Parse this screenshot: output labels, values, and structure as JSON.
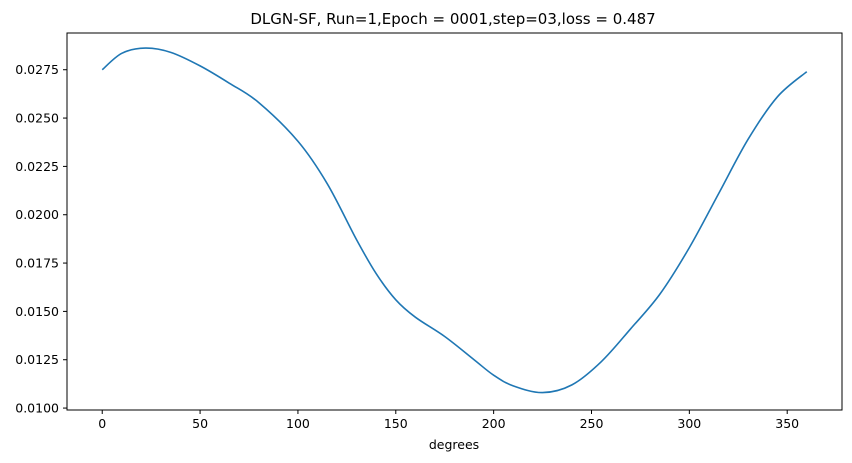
{
  "chart_data": {
    "type": "line",
    "title": "DLGN-SF, Run=1,Epoch = 0001,step=03,loss = 0.487",
    "xlabel": "degrees",
    "ylabel": "",
    "xlim": [
      -18,
      378
    ],
    "ylim": [
      0.0099,
      0.0294
    ],
    "xticks": [
      0,
      50,
      100,
      150,
      200,
      250,
      300,
      350
    ],
    "yticks": [
      0.01,
      0.0125,
      0.015,
      0.0175,
      0.02,
      0.0225,
      0.025,
      0.0275
    ],
    "ytick_labels": [
      "0.0100",
      "0.0125",
      "0.0150",
      "0.0175",
      "0.0200",
      "0.0225",
      "0.0250",
      "0.0275"
    ],
    "grid": false,
    "series": [
      {
        "color": "#1f77b4",
        "x": [
          0,
          10,
          22,
          35,
          50,
          65,
          80,
          100,
          115,
          130,
          140,
          150,
          160,
          175,
          190,
          200,
          210,
          225,
          240,
          255,
          270,
          285,
          300,
          315,
          330,
          345,
          360
        ],
        "y": [
          0.0275,
          0.02835,
          0.02862,
          0.0284,
          0.0277,
          0.0268,
          0.0258,
          0.0238,
          0.0216,
          0.0187,
          0.01695,
          0.0156,
          0.0147,
          0.0137,
          0.0125,
          0.0117,
          0.01115,
          0.0108,
          0.0112,
          0.0124,
          0.0141,
          0.0159,
          0.0183,
          0.0211,
          0.0239,
          0.0261,
          0.0274
        ]
      }
    ]
  }
}
